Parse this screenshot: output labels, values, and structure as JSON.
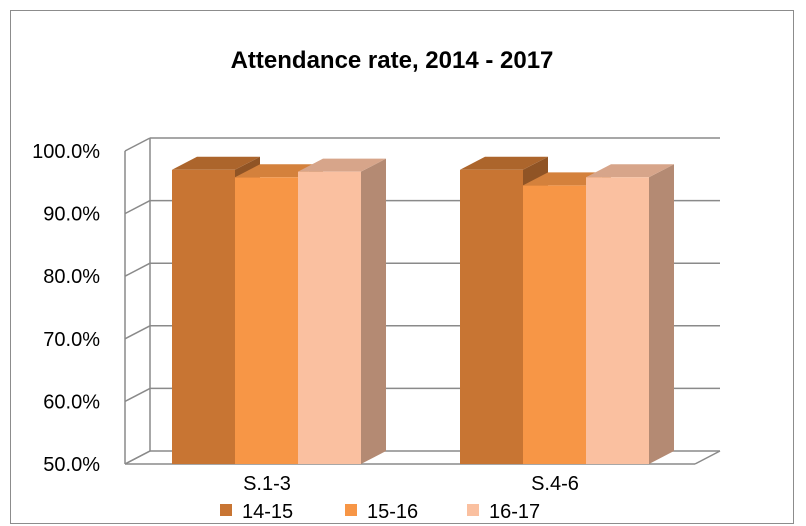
{
  "chart_data": {
    "type": "bar",
    "title": "Attendance rate, 2014 - 2017",
    "xlabel": "",
    "ylabel": "",
    "categories": [
      "S.1-3",
      "S.4-6"
    ],
    "series": [
      {
        "name": "14-15",
        "values": [
          97.0,
          97.0
        ],
        "color": "#C87533"
      },
      {
        "name": "15-16",
        "values": [
          95.8,
          94.5
        ],
        "color": "#F79646"
      },
      {
        "name": "16-17",
        "values": [
          96.7,
          95.8
        ],
        "color": "#FAC0A0"
      }
    ],
    "ylim": [
      50,
      100
    ],
    "yticks": [
      "50.0%",
      "60.0%",
      "70.0%",
      "80.0%",
      "90.0%",
      "100.0%"
    ],
    "ytick_values": [
      50,
      60,
      70,
      80,
      90,
      100
    ],
    "grid": true,
    "legend": "bottom",
    "style": "3d-clustered-column"
  }
}
